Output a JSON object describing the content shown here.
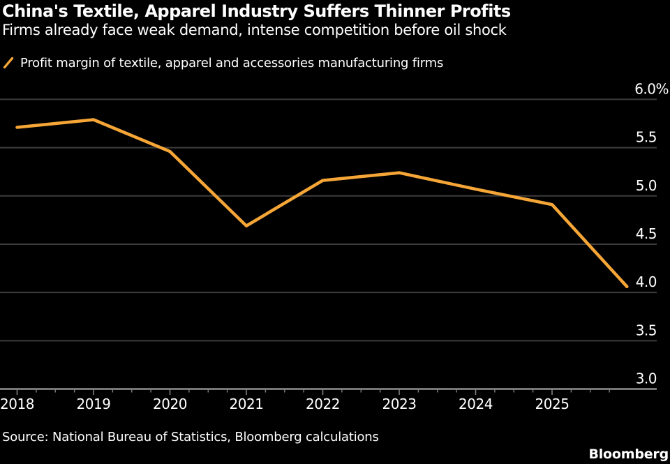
{
  "header": {
    "title": "China's Textile, Apparel Industry Suffers Thinner Profits",
    "subtitle": "Firms already face weak demand, intense competition before oil shock"
  },
  "legend": {
    "marker_icon": "orange-slash-icon",
    "label": "Profit margin of textile, apparel and accessories manufacturing firms"
  },
  "chart_data": {
    "type": "line",
    "title": "China's Textile, Apparel Industry Suffers Thinner Profits",
    "xlabel": "",
    "ylabel": "",
    "unit": "%",
    "ylim": [
      3.0,
      6.0
    ],
    "grid": "horizontal",
    "legend_position": "top-left",
    "series": [
      {
        "name": "Profit margin of textile, apparel and accessories manufacturing firms",
        "color": "#F5A637",
        "x": [
          2018,
          2019,
          2020,
          2021,
          2022,
          2023,
          2024,
          2025,
          2025.98
        ],
        "values": [
          5.71,
          5.79,
          5.46,
          4.69,
          5.16,
          5.24,
          5.07,
          4.91,
          4.06
        ]
      }
    ],
    "x_axis": {
      "tick_years": [
        2018,
        2019,
        2020,
        2021,
        2022,
        2023,
        2024,
        2025
      ],
      "tick_labels": [
        "2018",
        "2019",
        "2020",
        "2021",
        "2022",
        "2023",
        "2024",
        "2025"
      ],
      "minor_tick_interval_years": 0.25,
      "last_minor_tick_year": 2025.75
    },
    "y_axis": {
      "tick_values": [
        6.0,
        5.5,
        5.0,
        4.5,
        4.0,
        3.5,
        3.0
      ],
      "tick_labels": [
        "6.0%",
        "5.5",
        "5.0",
        "4.5",
        "4.0",
        "3.5",
        "3.0"
      ],
      "side": "right"
    }
  },
  "footer": {
    "source": "Source: National Bureau of Statistics, Bloomberg calculations",
    "brand": "Bloomberg"
  },
  "colors": {
    "background": "#000000",
    "text": "#ffffff",
    "accent": "#F5A637",
    "gridline": "#3c3c3c",
    "axis_line": "#909090",
    "tick_mark": "#808080"
  }
}
